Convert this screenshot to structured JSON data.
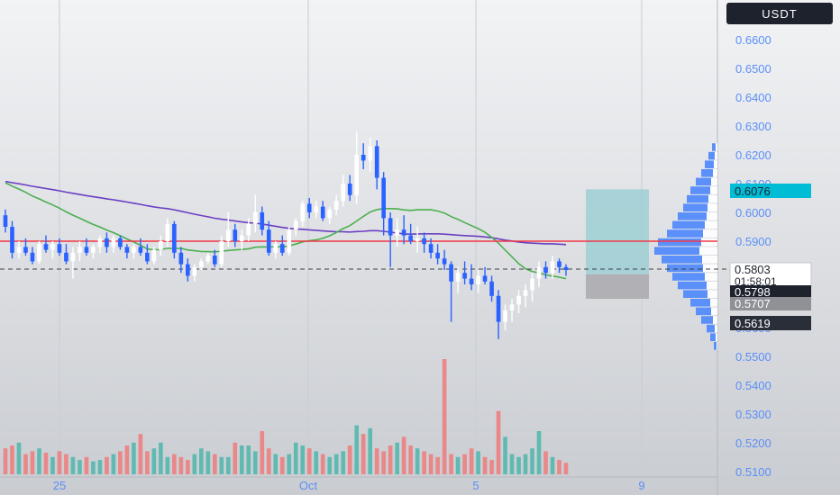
{
  "currency_badge": "USDT",
  "chart_data": {
    "type": "candlestick",
    "title": "",
    "price_axis": {
      "ticks": [
        "0.6600",
        "0.6500",
        "0.6400",
        "0.6300",
        "0.6200",
        "0.6100",
        "0.6000",
        "0.5900",
        "0.5700",
        "0.5600",
        "0.5500",
        "0.5400",
        "0.5300",
        "0.5200",
        "0.5100"
      ],
      "ylim": [
        0.509,
        0.671
      ]
    },
    "time_axis": {
      "ticks": [
        "25",
        "Oct",
        "5",
        "9"
      ]
    },
    "price_labels": {
      "current": "0.6076",
      "last": "0.5803",
      "countdown": "01:58:01",
      "level_a": "0.5798",
      "level_b": "0.5707",
      "level_c": "0.5619"
    },
    "horizontal_line": 0.59,
    "dashed_line": 0.5803,
    "position_box": {
      "top": 0.608,
      "entry": 0.5785,
      "bottom": 0.57
    },
    "candles": [
      [
        0.599,
        0.601,
        0.593,
        0.595
      ],
      [
        0.595,
        0.597,
        0.584,
        0.586
      ],
      [
        0.586,
        0.59,
        0.584,
        0.588
      ],
      [
        0.588,
        0.591,
        0.585,
        0.586
      ],
      [
        0.586,
        0.588,
        0.582,
        0.583
      ],
      [
        0.583,
        0.59,
        0.582,
        0.589
      ],
      [
        0.589,
        0.592,
        0.586,
        0.587
      ],
      [
        0.587,
        0.59,
        0.584,
        0.589
      ],
      [
        0.589,
        0.591,
        0.585,
        0.586
      ],
      [
        0.586,
        0.589,
        0.582,
        0.583
      ],
      [
        0.583,
        0.588,
        0.577,
        0.586
      ],
      [
        0.586,
        0.59,
        0.583,
        0.588
      ],
      [
        0.588,
        0.591,
        0.585,
        0.586
      ],
      [
        0.586,
        0.589,
        0.584,
        0.588
      ],
      [
        0.588,
        0.592,
        0.586,
        0.591
      ],
      [
        0.591,
        0.593,
        0.586,
        0.588
      ],
      [
        0.588,
        0.592,
        0.586,
        0.591
      ],
      [
        0.591,
        0.592,
        0.587,
        0.588
      ],
      [
        0.588,
        0.589,
        0.584,
        0.586
      ],
      [
        0.586,
        0.589,
        0.584,
        0.588
      ],
      [
        0.588,
        0.591,
        0.585,
        0.586
      ],
      [
        0.586,
        0.589,
        0.582,
        0.583
      ],
      [
        0.583,
        0.588,
        0.582,
        0.587
      ],
      [
        0.587,
        0.592,
        0.585,
        0.59
      ],
      [
        0.59,
        0.598,
        0.588,
        0.596
      ],
      [
        0.596,
        0.597,
        0.584,
        0.586
      ],
      [
        0.586,
        0.588,
        0.579,
        0.582
      ],
      [
        0.582,
        0.584,
        0.576,
        0.578
      ],
      [
        0.578,
        0.582,
        0.576,
        0.581
      ],
      [
        0.581,
        0.584,
        0.58,
        0.583
      ],
      [
        0.583,
        0.586,
        0.582,
        0.585
      ],
      [
        0.585,
        0.587,
        0.581,
        0.582
      ],
      [
        0.582,
        0.592,
        0.581,
        0.59
      ],
      [
        0.59,
        0.6,
        0.588,
        0.594
      ],
      [
        0.594,
        0.596,
        0.588,
        0.59
      ],
      [
        0.59,
        0.594,
        0.587,
        0.592
      ],
      [
        0.592,
        0.598,
        0.59,
        0.596
      ],
      [
        0.596,
        0.606,
        0.593,
        0.6
      ],
      [
        0.6,
        0.602,
        0.592,
        0.594
      ],
      [
        0.594,
        0.597,
        0.585,
        0.586
      ],
      [
        0.586,
        0.59,
        0.584,
        0.589
      ],
      [
        0.589,
        0.592,
        0.585,
        0.586
      ],
      [
        0.586,
        0.595,
        0.585,
        0.594
      ],
      [
        0.594,
        0.598,
        0.592,
        0.597
      ],
      [
        0.597,
        0.604,
        0.595,
        0.603
      ],
      [
        0.603,
        0.605,
        0.598,
        0.6
      ],
      [
        0.6,
        0.604,
        0.598,
        0.602
      ],
      [
        0.602,
        0.604,
        0.597,
        0.598
      ],
      [
        0.598,
        0.602,
        0.596,
        0.601
      ],
      [
        0.601,
        0.606,
        0.599,
        0.604
      ],
      [
        0.604,
        0.613,
        0.602,
        0.61
      ],
      [
        0.61,
        0.613,
        0.604,
        0.606
      ],
      [
        0.606,
        0.628,
        0.603,
        0.62
      ],
      [
        0.62,
        0.624,
        0.615,
        0.618
      ],
      [
        0.618,
        0.626,
        0.614,
        0.623
      ],
      [
        0.623,
        0.625,
        0.608,
        0.612
      ],
      [
        0.612,
        0.614,
        0.592,
        0.598
      ],
      [
        0.598,
        0.6,
        0.581,
        0.592
      ],
      [
        0.592,
        0.598,
        0.588,
        0.594
      ],
      [
        0.594,
        0.599,
        0.589,
        0.592
      ],
      [
        0.592,
        0.596,
        0.589,
        0.59
      ],
      [
        0.59,
        0.595,
        0.586,
        0.591
      ],
      [
        0.591,
        0.593,
        0.586,
        0.589
      ],
      [
        0.589,
        0.591,
        0.584,
        0.586
      ],
      [
        0.586,
        0.589,
        0.582,
        0.584
      ],
      [
        0.584,
        0.587,
        0.58,
        0.582
      ],
      [
        0.582,
        0.583,
        0.562,
        0.576
      ],
      [
        0.576,
        0.581,
        0.572,
        0.579
      ],
      [
        0.579,
        0.583,
        0.575,
        0.577
      ],
      [
        0.577,
        0.582,
        0.573,
        0.575
      ],
      [
        0.575,
        0.58,
        0.572,
        0.578
      ],
      [
        0.578,
        0.581,
        0.575,
        0.576
      ],
      [
        0.576,
        0.578,
        0.569,
        0.571
      ],
      [
        0.571,
        0.573,
        0.556,
        0.562
      ],
      [
        0.562,
        0.568,
        0.559,
        0.566
      ],
      [
        0.566,
        0.57,
        0.562,
        0.568
      ],
      [
        0.568,
        0.573,
        0.565,
        0.571
      ],
      [
        0.571,
        0.575,
        0.567,
        0.573
      ],
      [
        0.573,
        0.579,
        0.569,
        0.577
      ],
      [
        0.577,
        0.583,
        0.574,
        0.581
      ],
      [
        0.581,
        0.583,
        0.577,
        0.579
      ],
      [
        0.579,
        0.585,
        0.577,
        0.583
      ],
      [
        0.583,
        0.584,
        0.579,
        0.581
      ],
      [
        0.581,
        0.582,
        0.578,
        0.58
      ]
    ],
    "volumes": [
      18,
      20,
      22,
      14,
      16,
      18,
      15,
      12,
      16,
      14,
      12,
      10,
      12,
      9,
      10,
      12,
      14,
      16,
      20,
      22,
      28,
      16,
      18,
      22,
      12,
      14,
      12,
      10,
      14,
      18,
      16,
      14,
      12,
      12,
      22,
      20,
      20,
      16,
      30,
      18,
      14,
      12,
      14,
      22,
      20,
      18,
      16,
      14,
      12,
      14,
      16,
      20,
      34,
      28,
      32,
      18,
      16,
      20,
      22,
      26,
      20,
      18,
      16,
      14,
      12,
      80,
      14,
      12,
      14,
      18,
      16,
      12,
      10,
      44,
      26,
      14,
      12,
      14,
      18,
      30,
      16,
      12,
      10,
      8
    ],
    "volume_colors": "rule: red if close<open else teal",
    "colors": {
      "bull": "#ffffff",
      "bear": "#2962ff",
      "ma_fast": "#4caf50",
      "ma_slow": "#6c3fc2",
      "hline": "#f23645",
      "vol_up": "#4db6ac",
      "vol_down": "#ef7b7b",
      "profit_box": "#9ecfd4",
      "loss_box": "#a9a9ad",
      "accent": "#00bcd4"
    }
  }
}
